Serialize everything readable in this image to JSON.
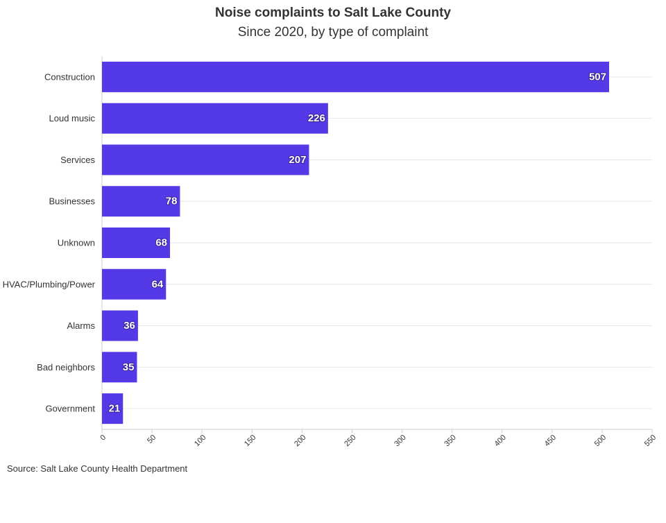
{
  "title": "Noise complaints to Salt Lake County",
  "subtitle": "Since 2020, by type of complaint",
  "source": "Source: Salt Lake County Health Department",
  "colors": {
    "bar": "#5439e6",
    "grid": "#e6e6e6",
    "axis": "#cccccc"
  },
  "chart_data": {
    "type": "bar",
    "orientation": "horizontal",
    "categories": [
      "Construction",
      "Loud music",
      "Services",
      "Businesses",
      "Unknown",
      "HVAC/Plumbing/Power",
      "Alarms",
      "Bad neighbors",
      "Government"
    ],
    "values": [
      507,
      226,
      207,
      78,
      68,
      64,
      36,
      35,
      21
    ],
    "xlim": [
      0,
      550
    ],
    "xticks": [
      0,
      50,
      100,
      150,
      200,
      250,
      300,
      350,
      400,
      450,
      500,
      550
    ],
    "grid": true,
    "data_labels": true
  }
}
